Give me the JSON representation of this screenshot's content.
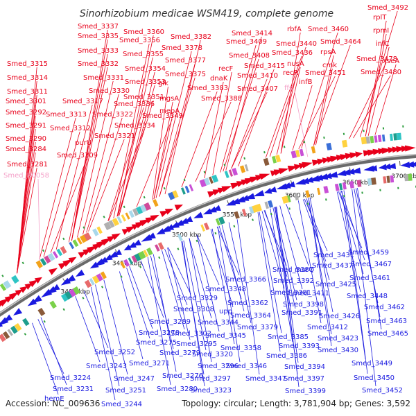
{
  "title": "Sinorhizobium medicae WSM419, complete genome",
  "footer": {
    "accession": "Accession: NC_009636",
    "summary": "Topology: circular; Length: 3,781,904 bp; Genes: 3,592"
  },
  "colors": {
    "forward": "#e8001a",
    "reverse": "#1a1ae0",
    "rna": "#f4a0c8",
    "backbone": "#888888"
  },
  "ticks": [
    "3400 kbp",
    "3450 kbp",
    "3500 kbp",
    "3550 kbp",
    "3600 kbp",
    "3650 kbp",
    "3700 kbp"
  ],
  "labels_forward": [
    "Smed_3337",
    "Smed_3335",
    "Smed_3333",
    "Smed_3332",
    "Smed_3331",
    "Smed_3330",
    "Smed_3360",
    "Smed_3356",
    "Smed_3355",
    "Smed_3354",
    "Smed_3353",
    "Smed_3351",
    "Smed_3336",
    "Smed_3322",
    "Smed_3334",
    "Smed_3349",
    "Smed_3382",
    "Smed_3378",
    "Smed_3377",
    "Smed_3375",
    "glk",
    "mgsA",
    "mepA",
    "Smed_3383",
    "Smed_3388",
    "recF",
    "dnaK",
    "Smed_3414",
    "Smed_3409",
    "Smed_3408",
    "Smed_3415",
    "Smed_3410",
    "Smed_3407",
    "rbfA",
    "Smed_3440",
    "Smed_3436",
    "nusA",
    "recR",
    "infB",
    "Smed_3460",
    "Smed_3464",
    "rpsA",
    "cmk",
    "Smed_3451",
    "Smed_3492",
    "rplT",
    "rpmI",
    "infC",
    "Smed_3478",
    "Smed_3480",
    "xseA",
    "Smed_3315",
    "Smed_3314",
    "Smed_3311",
    "Smed_3301",
    "Smed_3292",
    "Smed_3291",
    "Smed_3290",
    "Smed_3284",
    "Smed_3281",
    "Smed_3317",
    "Smed_3313",
    "Smed_3312",
    "purU",
    "Smed_3321",
    "Smed_3309"
  ],
  "labels_rna": [
    "Smed_R0058",
    "ffs"
  ],
  "labels_reverse": [
    "Smed_3431",
    "Smed_3437",
    "Smed_3459",
    "Smed_3467",
    "Smed_3461",
    "Smed_3448",
    "Smed_3462",
    "Smed_3463",
    "Smed_3465",
    "Smed_3449",
    "Smed_3450",
    "Smed_3452",
    "Smed_3425",
    "Smed_3426",
    "Smed_3423",
    "Smed_3430",
    "Smed_3387",
    "murQ",
    "Smed_3392",
    "Smed_3411",
    "Smed_3398",
    "Smed_3391",
    "Smed_3412",
    "Smed_3381",
    "Smed_3366",
    "Smed_3348",
    "Smed_3362",
    "upp",
    "Smed_3364",
    "Smed_3379",
    "Smed_3385",
    "Smed_3393",
    "Smed_3386",
    "Smed_3394",
    "Smed_3397",
    "Smed_3399",
    "Smed_3329",
    "Smed_3308",
    "Smed_3344",
    "Smed_3345",
    "Smed_3358",
    "Smed_3346",
    "Smed_3347",
    "Smed_3289",
    "Smed_3278",
    "Smed_3302",
    "Smed_3275",
    "Smed_3295",
    "Smed_3279",
    "Smed_3320",
    "Smed_3271",
    "Smed_3296",
    "Smed_3276",
    "Smed_3297",
    "Smed_3280",
    "Smed_3323",
    "Smed_3252",
    "Smed_3243",
    "Smed_3224",
    "Smed_3247",
    "Smed_3231",
    "Smed_3251",
    "hemE",
    "Smed_3244"
  ]
}
